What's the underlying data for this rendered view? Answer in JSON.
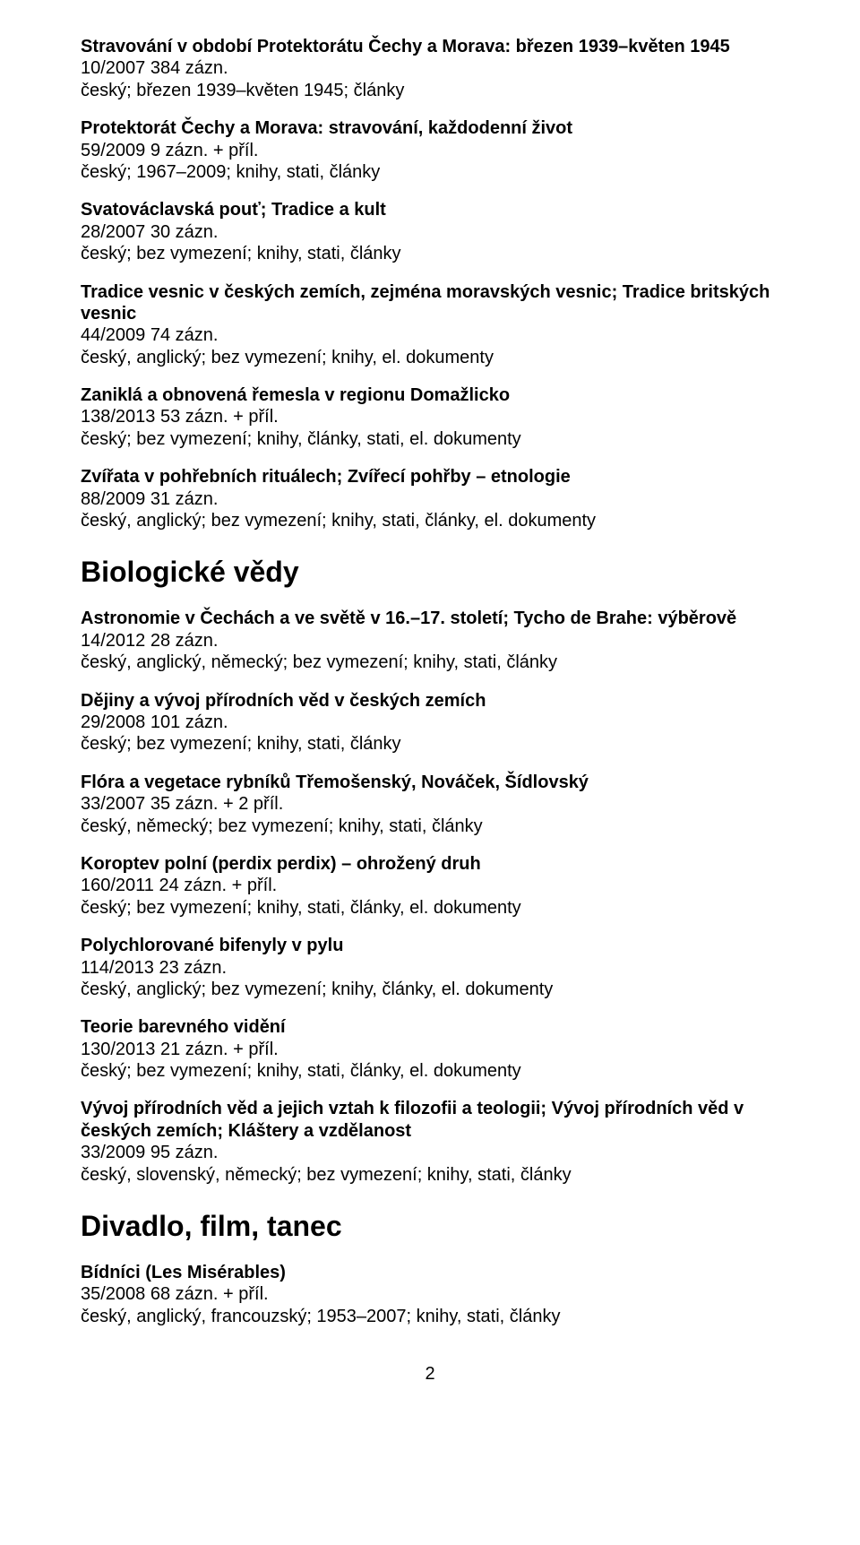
{
  "entries_top": [
    {
      "title": "Stravování v období Protektorátu Čechy a Morava: březen 1939–květen 1945",
      "ref": "10/2007 384 zázn.",
      "meta": "český; březen 1939–květen 1945; články"
    },
    {
      "title": "Protektorát Čechy a Morava: stravování, každodenní život",
      "ref": "59/2009 9 zázn. + příl.",
      "meta": "český; 1967–2009; knihy, stati, články"
    },
    {
      "title": "Svatováclavská pouť; Tradice a kult",
      "ref": "28/2007 30 zázn.",
      "meta": "český; bez vymezení; knihy, stati, články"
    },
    {
      "title": "Tradice vesnic v českých zemích, zejména moravských vesnic; Tradice britských vesnic",
      "ref": "44/2009 74 zázn.",
      "meta": "český, anglický; bez vymezení; knihy, el. dokumenty"
    },
    {
      "title": "Zaniklá a obnovená řemesla v regionu Domažlicko",
      "ref": "138/2013 53 zázn. + příl.",
      "meta": "český; bez vymezení; knihy, články, stati, el. dokumenty"
    },
    {
      "title": "Zvířata v pohřebních rituálech; Zvířecí pohřby – etnologie",
      "ref": "88/2009 31 zázn.",
      "meta": "český, anglický; bez vymezení; knihy, stati, články, el. dokumenty"
    }
  ],
  "section_bio": "Biologické vědy",
  "entries_bio": [
    {
      "title": "Astronomie v Čechách a ve světě v 16.–17. století; Tycho de Brahe: výběrově",
      "ref": "14/2012 28 zázn.",
      "meta": "český, anglický, německý; bez vymezení; knihy, stati, články"
    },
    {
      "title": "Dějiny a vývoj přírodních věd v českých zemích",
      "ref": "29/2008 101 zázn.",
      "meta": "český; bez vymezení; knihy, stati, články"
    },
    {
      "title": "Flóra a vegetace rybníků Třemošenský, Nováček, Šídlovský",
      "ref": "33/2007 35 zázn. + 2 příl.",
      "meta": "český, německý; bez vymezení; knihy, stati, články"
    },
    {
      "title": "Koroptev polní (perdix perdix) – ohrožený druh",
      "ref": "160/2011 24 zázn. + příl.",
      "meta": "český; bez vymezení; knihy, stati, články, el. dokumenty"
    },
    {
      "title": "Polychlorované bifenyly v pylu",
      "ref": "114/2013 23 zázn.",
      "meta": "český, anglický; bez vymezení; knihy, články, el. dokumenty"
    },
    {
      "title": "Teorie barevného vidění",
      "ref": "130/2013 21 zázn. + příl.",
      "meta": "český; bez vymezení; knihy, stati, články, el. dokumenty"
    },
    {
      "title": "Vývoj přírodních věd a jejich vztah k filozofii a teologii; Vývoj přírodních věd v českých zemích; Kláštery a vzdělanost",
      "ref": "33/2009 95 zázn.",
      "meta": "český, slovenský, německý; bez vymezení; knihy, stati, články"
    }
  ],
  "section_div": "Divadlo, film, tanec",
  "entries_div": [
    {
      "title": "Bídníci (Les Misérables)",
      "ref": "35/2008 68 zázn. + příl.",
      "meta": "český, anglický, francouzský; 1953–2007; knihy, stati, články"
    }
  ],
  "page_number": "2"
}
